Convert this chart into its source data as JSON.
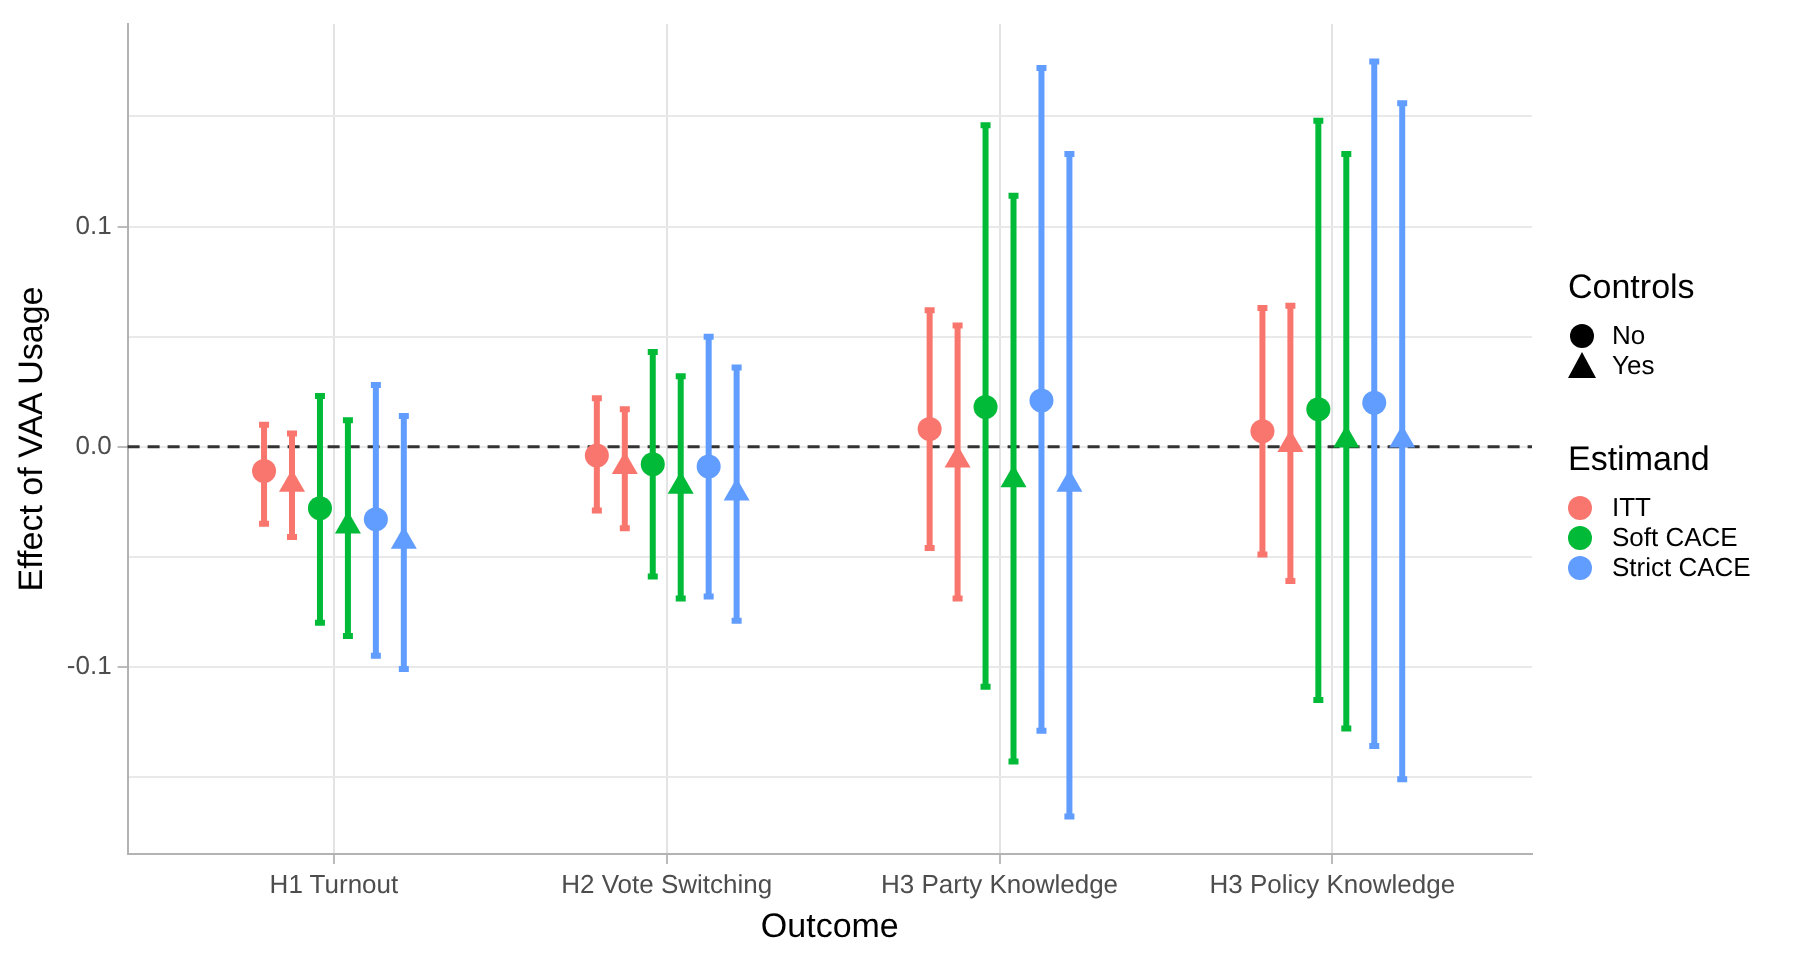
{
  "chart_data": {
    "type": "scatter",
    "xlabel": "Outcome",
    "ylabel": "Effect of VAA Usage",
    "legend_title": "Estimand",
    "legend": "right",
    "grid": true,
    "categories": [
      "H1 Turnout",
      "H2 Vote Switching",
      "H3 Party Knowledge",
      "H3 Policy Knowledge"
    ],
    "ylim": [
      -0.185,
      0.192
    ],
    "yticks": [
      {
        "value": -0.15,
        "label": null
      },
      {
        "value": -0.1,
        "label": "-0.1"
      },
      {
        "value": -0.05,
        "label": null
      },
      {
        "value": 0,
        "label": "0.0"
      },
      {
        "value": 0.05,
        "label": null
      },
      {
        "value": 0.1,
        "label": "0.1"
      },
      {
        "value": 0.15,
        "label": null
      }
    ],
    "ref_lines": [
      {
        "axis": "y",
        "value": 0,
        "color": "#333333",
        "line_style": "dashed"
      }
    ],
    "annotations": [
      "Controls",
      "No",
      "Yes"
    ],
    "series": [
      {
        "name": "ITT",
        "color": "#f8766d",
        "marker": "circle",
        "values": [
          -0.011,
          -0.004,
          0.008,
          0.007
        ],
        "errors": [
          [
            -0.035,
            0.01
          ],
          [
            -0.029,
            0.022
          ],
          [
            -0.046,
            0.062
          ],
          [
            -0.049,
            0.063
          ]
        ]
      },
      {
        "color": "#f8766d",
        "marker": "triangle",
        "values": [
          -0.017,
          -0.009,
          -0.006,
          0.001
        ],
        "errors": [
          [
            -0.041,
            0.006
          ],
          [
            -0.037,
            0.017
          ],
          [
            -0.069,
            0.055
          ],
          [
            -0.061,
            0.064
          ]
        ]
      },
      {
        "name": "Soft CACE",
        "color": "#00ba38",
        "marker": "circle",
        "values": [
          -0.028,
          -0.008,
          0.018,
          0.017
        ],
        "errors": [
          [
            -0.08,
            0.023
          ],
          [
            -0.059,
            0.043
          ],
          [
            -0.109,
            0.146
          ],
          [
            -0.115,
            0.148
          ]
        ]
      },
      {
        "color": "#00ba38",
        "marker": "triangle",
        "values": [
          -0.036,
          -0.018,
          -0.015,
          0.003
        ],
        "errors": [
          [
            -0.086,
            0.012
          ],
          [
            -0.069,
            0.032
          ],
          [
            -0.143,
            0.114
          ],
          [
            -0.128,
            0.133
          ]
        ]
      },
      {
        "name": "Strict CACE",
        "color": "#619cff",
        "marker": "circle",
        "values": [
          -0.033,
          -0.009,
          0.021,
          0.02
        ],
        "errors": [
          [
            -0.095,
            0.028
          ],
          [
            -0.068,
            0.05
          ],
          [
            -0.129,
            0.172
          ],
          [
            -0.136,
            0.175
          ]
        ]
      },
      {
        "color": "#619cff",
        "marker": "triangle",
        "values": [
          -0.043,
          -0.021,
          -0.017,
          0.003
        ],
        "errors": [
          [
            -0.101,
            0.014
          ],
          [
            -0.079,
            0.036
          ],
          [
            -0.168,
            0.133
          ],
          [
            -0.151,
            0.156
          ]
        ]
      }
    ]
  }
}
